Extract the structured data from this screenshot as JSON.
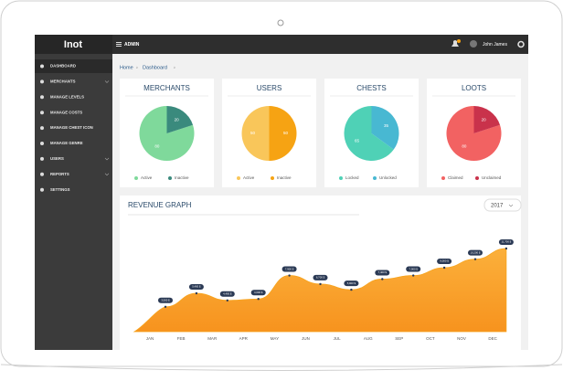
{
  "header": {
    "logo": "Inot",
    "section": "ADMIN",
    "user": "John James"
  },
  "sidebar": [
    "DASHBOARD",
    "MERCHANTS",
    "MANAGE LEVELS",
    "MANAGE COSTS",
    "MANAGE CHEST ICON",
    "MANAGE GENRE",
    "USERS",
    "REPORTS",
    "SETTINGS"
  ],
  "breadcrumb": [
    "Home",
    "Dashboard"
  ],
  "cards": [
    {
      "title": "MERCHANTS",
      "slices": [
        {
          "name": "Active",
          "value": 80,
          "color": "#7fd99b"
        },
        {
          "name": "Inactive",
          "value": 20,
          "color": "#3a8a7d"
        }
      ]
    },
    {
      "title": "USERS",
      "slices": [
        {
          "name": "Active",
          "value": 50,
          "color": "#f9c65a"
        },
        {
          "name": "Inactive",
          "value": 50,
          "color": "#f6a313"
        }
      ]
    },
    {
      "title": "CHESTS",
      "slices": [
        {
          "name": "Locked",
          "value": 65,
          "color": "#4fd1b6"
        },
        {
          "name": "Unlocked",
          "value": 35,
          "color": "#48b8d2"
        }
      ]
    },
    {
      "title": "LOOTS",
      "slices": [
        {
          "name": "Claimed",
          "value": 80,
          "color": "#f26262"
        },
        {
          "name": "Unclaimed",
          "value": 20,
          "color": "#c9324b"
        }
      ]
    }
  ],
  "revenue": {
    "title": "REVENUE GRAPH",
    "year": "2017",
    "categories": [
      "JAN",
      "FEB",
      "MAR",
      "APR",
      "MAY",
      "JUN",
      "JUL",
      "AUG",
      "SEP",
      "OCT",
      "NOV",
      "DEC"
    ],
    "values": [
      3500,
      5400,
      4400,
      4600,
      7900,
      6700,
      5900,
      7400,
      7900,
      9000,
      10200,
      11700
    ],
    "value_labels": [
      "3,500 $",
      "5,400 $",
      "4,400 $",
      "4,600 $",
      "7,900 $",
      "6,700 $",
      "5,900 $",
      "7,400 $",
      "7,900 $",
      "9,000 $",
      "10,200 $",
      "11,700 $"
    ],
    "color": "#f7a41d"
  }
}
